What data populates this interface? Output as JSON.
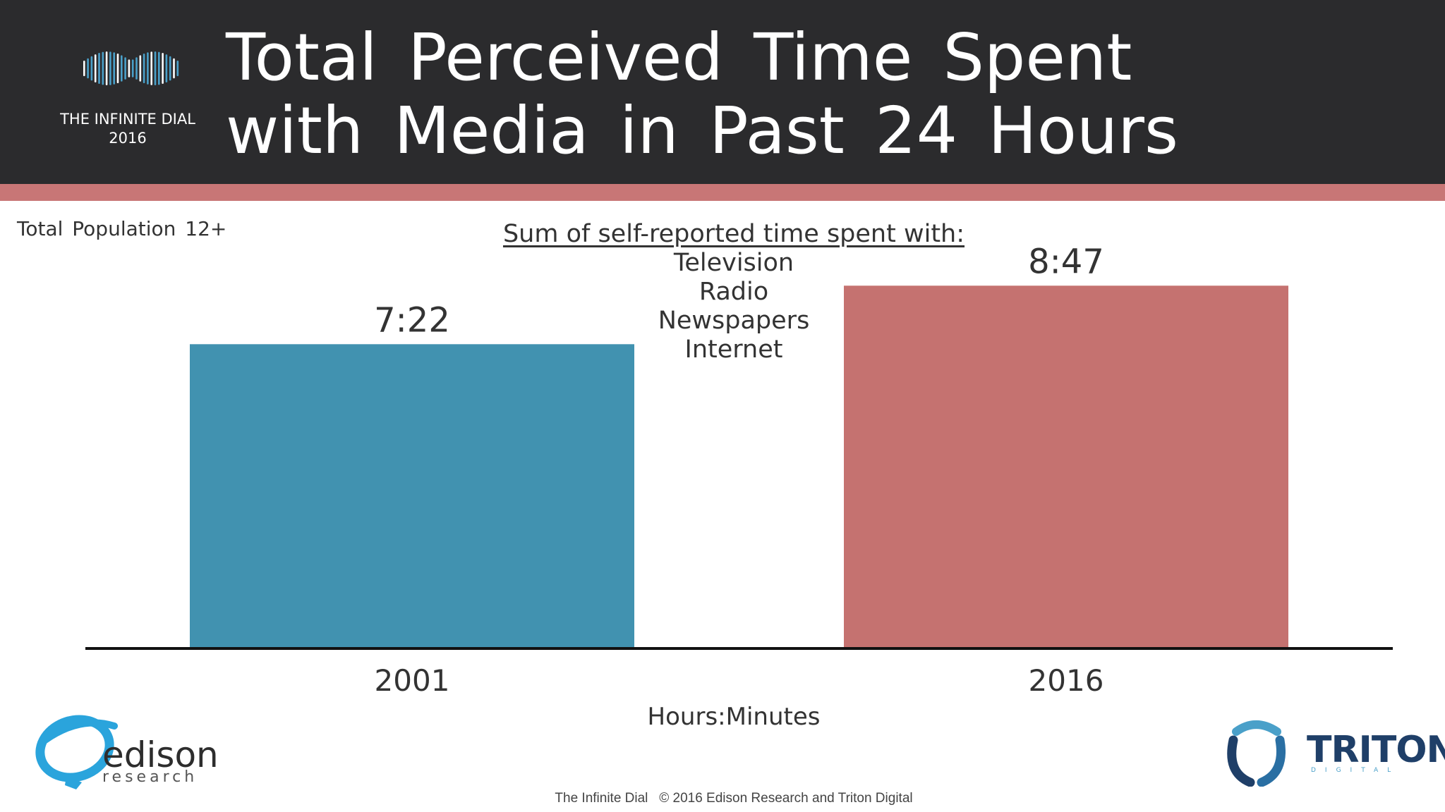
{
  "header": {
    "title_line1": "Total Perceived Time Spent",
    "title_line2": "with Media in Past 24 Hours",
    "logo_caption_line1": "THE INFINITE DIAL",
    "logo_caption_line2": "2016",
    "accent_color": "#c87676",
    "background_color": "#2b2b2d"
  },
  "subtitle": "Total Population 12+",
  "note": {
    "heading": "Sum of self-reported time spent with:",
    "items": [
      "Television",
      "Radio",
      "Newspapers",
      "Internet"
    ]
  },
  "chart_data": {
    "type": "bar",
    "title": "Total Perceived Time Spent with Media in Past 24 Hours",
    "categories": [
      "2001",
      "2016"
    ],
    "values": [
      442,
      527
    ],
    "value_labels": [
      "7:22",
      "8:47"
    ],
    "colors": [
      "#4192b0",
      "#c57270"
    ],
    "xlabel": "Hours:Minutes",
    "ylabel": "",
    "ylim": [
      0,
      600
    ],
    "grid": false,
    "legend": "none"
  },
  "logos": {
    "edison_word": "edison",
    "edison_sub": "research",
    "triton_word": "TRITON",
    "triton_sub": "DIGITAL",
    "edison_color": "#2aa4dc",
    "triton_color": "#1f3f68"
  },
  "footer": "The Infinite Dial   © 2016 Edison Research and Triton Digital"
}
